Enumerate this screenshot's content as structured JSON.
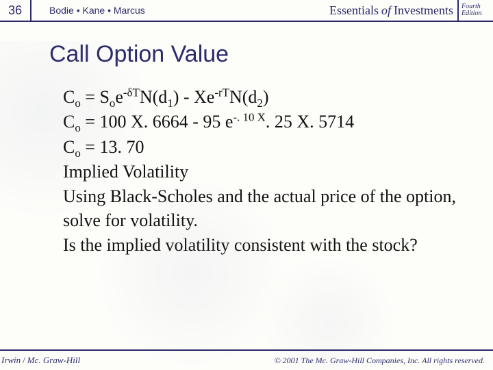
{
  "colors": {
    "brand": "#2b2b6b",
    "body_text": "#111111",
    "background": "#fdfdfa"
  },
  "typography": {
    "title_font": "Arial",
    "title_size_pt": 26,
    "body_font": "Times New Roman",
    "body_size_pt": 20
  },
  "header": {
    "slide_number": "36",
    "authors": "Bodie • Kane • Marcus",
    "book_essentials": "Essentials",
    "book_of": "of",
    "book_investments": "Investments",
    "edition_line1": "Fourth",
    "edition_line2": "Edition"
  },
  "title": "Call Option Value",
  "body": {
    "formula_html": "C<sub>o</sub> = S<sub>o</sub>e<sup>-δT</sup>N(d<sub>1</sub>) - Xe<sup>-rT</sup>N(d<sub>2</sub>)",
    "line2_html": "C<sub>o</sub> = 100 X. 6664 - 95 e<sup>-. 10 X</sup>. 25 X. 5714",
    "line3_html": "C<sub>o</sub> = 13. 70",
    "line4": "Implied Volatility",
    "line5": "Using Black-Scholes and the actual price of the option, solve for volatility.",
    "line6": "Is the implied volatility consistent with the stock?"
  },
  "footer": {
    "publisher_irwin": "Irwin",
    "publisher_slash": "/",
    "publisher_mcgraw": "Mc. Graw-Hill",
    "copyright": "© 2001 The Mc. Graw-Hill Companies, Inc. All rights reserved."
  }
}
